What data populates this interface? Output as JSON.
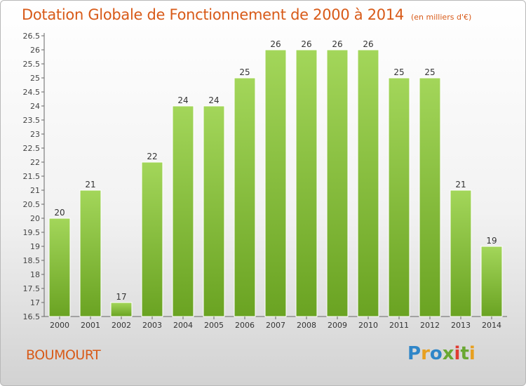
{
  "header": {
    "title": "Dotation Globale de Fonctionnement de 2000 à 2014",
    "unit": "(en milliers d'€)"
  },
  "commune": "BOUMOURT",
  "logo": {
    "letters": [
      "P",
      "r",
      "o",
      "x",
      "i",
      "t",
      "i"
    ]
  },
  "colors": {
    "bar_light": "#a3d65a",
    "bar_dark": "#6aa322",
    "title": "#d85a18"
  },
  "chart_data": {
    "type": "bar",
    "title": "Dotation Globale de Fonctionnement de 2000 à 2014",
    "subtitle": "(en milliers d'€)",
    "categories": [
      "2000",
      "2001",
      "2002",
      "2003",
      "2004",
      "2005",
      "2006",
      "2007",
      "2008",
      "2009",
      "2010",
      "2011",
      "2012",
      "2013",
      "2014"
    ],
    "values": [
      20,
      21,
      17,
      22,
      24,
      24,
      25,
      26,
      26,
      26,
      26,
      25,
      25,
      21,
      19
    ],
    "ylim": [
      16.5,
      26.5
    ],
    "yticks": [
      "16.5",
      "17",
      "17.5",
      "18",
      "18.5",
      "19",
      "19.5",
      "20",
      "20.5",
      "21",
      "21.5",
      "22",
      "22.5",
      "23",
      "23.5",
      "24",
      "24.5",
      "25",
      "25.5",
      "26",
      "26.5"
    ],
    "grid": false,
    "legend": "none",
    "xlabel": "",
    "ylabel": ""
  }
}
